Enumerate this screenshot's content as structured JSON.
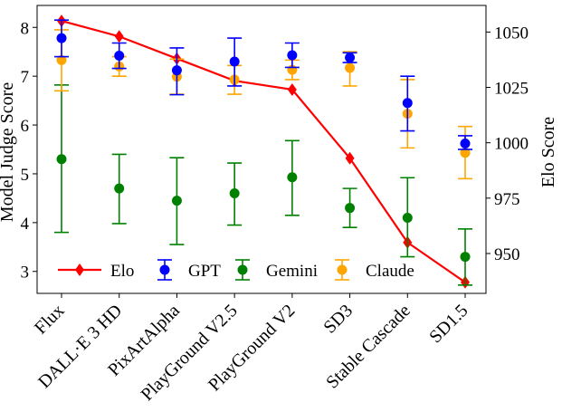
{
  "chart_data": {
    "type": "scatter",
    "categories": [
      "Flux",
      "DALL·E 3 HD",
      "PixArtAlpha",
      "PlayGround V2.5",
      "PlayGround V2",
      "SD3",
      "Stable Cascade",
      "SD1.5"
    ],
    "ylabel_left": "Model Judge Score",
    "ylabel_right": "Elo Score",
    "ylim_left": [
      2.55,
      8.45
    ],
    "yticks_left": [
      3,
      4,
      5,
      6,
      7,
      8
    ],
    "ylim_right": [
      932,
      1062
    ],
    "yticks_right": [
      950,
      975,
      1000,
      1025,
      1050
    ],
    "legend_position": "bottom-left",
    "colors": {
      "elo": "#ff0000",
      "gpt": "#0000ff",
      "gemini": "#008000",
      "claude": "#ffa500"
    },
    "series": [
      {
        "name": "Elo",
        "axis": "right",
        "style": "line-diamond",
        "values": [
          1055,
          1048,
          1038,
          1028,
          1024,
          993,
          955,
          937
        ]
      },
      {
        "name": "GPT",
        "axis": "left",
        "style": "errorbar",
        "values": [
          7.78,
          7.42,
          7.12,
          7.3,
          7.43,
          7.38,
          6.45,
          5.62
        ],
        "lower": [
          7.4,
          7.16,
          6.62,
          6.8,
          7.18,
          7.28,
          5.88,
          5.5
        ],
        "upper": [
          8.15,
          7.68,
          7.58,
          7.78,
          7.68,
          7.48,
          7.0,
          5.78
        ]
      },
      {
        "name": "Gemini",
        "axis": "left",
        "style": "errorbar",
        "values": [
          5.3,
          4.7,
          4.45,
          4.6,
          4.93,
          4.3,
          4.1,
          3.3
        ],
        "lower": [
          3.8,
          3.98,
          3.55,
          3.95,
          4.15,
          3.9,
          3.3,
          2.72
        ],
        "upper": [
          6.82,
          5.4,
          5.33,
          5.22,
          5.68,
          4.7,
          4.92,
          3.87
        ]
      },
      {
        "name": "Claude",
        "axis": "left",
        "style": "errorbar",
        "values": [
          7.33,
          7.2,
          6.99,
          6.93,
          7.13,
          7.17,
          6.23,
          5.43
        ],
        "lower": [
          6.7,
          7.0,
          6.63,
          6.63,
          6.93,
          6.8,
          5.53,
          4.9
        ],
        "upper": [
          7.95,
          7.4,
          7.35,
          7.22,
          7.33,
          7.5,
          6.93,
          5.97
        ]
      }
    ]
  }
}
